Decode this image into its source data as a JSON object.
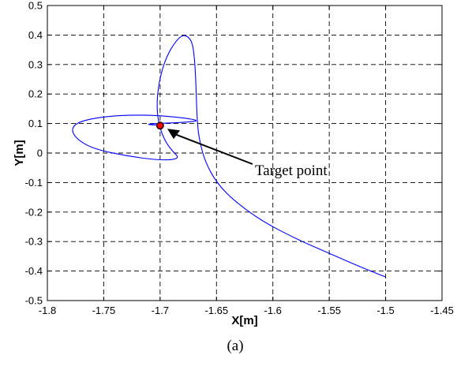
{
  "chart_data": {
    "type": "line",
    "xlabel": "X[m]",
    "ylabel": "Y[m]",
    "xlim": [
      -1.8,
      -1.45
    ],
    "ylim": [
      -0.5,
      0.5
    ],
    "x_ticks": [
      -1.8,
      -1.75,
      -1.7,
      -1.65,
      -1.6,
      -1.55,
      -1.5,
      -1.45
    ],
    "y_ticks": [
      -0.5,
      -0.4,
      -0.3,
      -0.2,
      -0.1,
      0,
      0.1,
      0.2,
      0.3,
      0.4,
      0.5
    ],
    "x_tick_labels": [
      "-1.8",
      "-1.75",
      "-1.7",
      "-1.65",
      "-1.6",
      "-1.55",
      "-1.5",
      "-1.45"
    ],
    "y_tick_labels": [
      "-0.5",
      "-0.4",
      "-0.3",
      "-0.2",
      "-0.1",
      "0",
      "0.1",
      "0.2",
      "0.3",
      "0.4",
      "0.5"
    ],
    "grid": true,
    "grid_style": "dashed",
    "series_color": "#0000ff",
    "marker_color": "#ff0000",
    "series": [
      {
        "points": [
          [
            -1.5,
            -0.42
          ],
          [
            -1.52,
            -0.39
          ],
          [
            -1.55,
            -0.34
          ],
          [
            -1.58,
            -0.29
          ],
          [
            -1.61,
            -0.23
          ],
          [
            -1.635,
            -0.16
          ],
          [
            -1.65,
            -0.1
          ],
          [
            -1.66,
            -0.03
          ],
          [
            -1.665,
            0.04
          ],
          [
            -1.667,
            0.1
          ],
          [
            -1.668,
            0.2
          ],
          [
            -1.669,
            0.3
          ],
          [
            -1.671,
            0.37
          ],
          [
            -1.675,
            0.395
          ],
          [
            -1.68,
            0.4
          ],
          [
            -1.686,
            0.38
          ],
          [
            -1.694,
            0.33
          ],
          [
            -1.7,
            0.26
          ],
          [
            -1.703,
            0.18
          ],
          [
            -1.702,
            0.11
          ],
          [
            -1.697,
            0.05
          ],
          [
            -1.69,
            0.01
          ],
          [
            -1.682,
            -0.02
          ],
          [
            -1.7,
            -0.025
          ],
          [
            -1.73,
            -0.01
          ],
          [
            -1.76,
            0.015
          ],
          [
            -1.775,
            0.05
          ],
          [
            -1.779,
            0.085
          ],
          [
            -1.77,
            0.11
          ],
          [
            -1.745,
            0.126
          ],
          [
            -1.71,
            0.13
          ],
          [
            -1.68,
            0.12
          ],
          [
            -1.665,
            0.11
          ],
          [
            -1.675,
            0.105
          ],
          [
            -1.69,
            0.102
          ],
          [
            -1.705,
            0.1
          ],
          [
            -1.712,
            0.097
          ],
          [
            -1.704,
            0.095
          ],
          [
            -1.7,
            0.094
          ]
        ]
      }
    ],
    "target_point": {
      "x": -1.7,
      "y": 0.093
    },
    "annotation": {
      "text": "Target point",
      "x": -1.695,
      "y": 0.085
    },
    "caption": "(a)"
  }
}
